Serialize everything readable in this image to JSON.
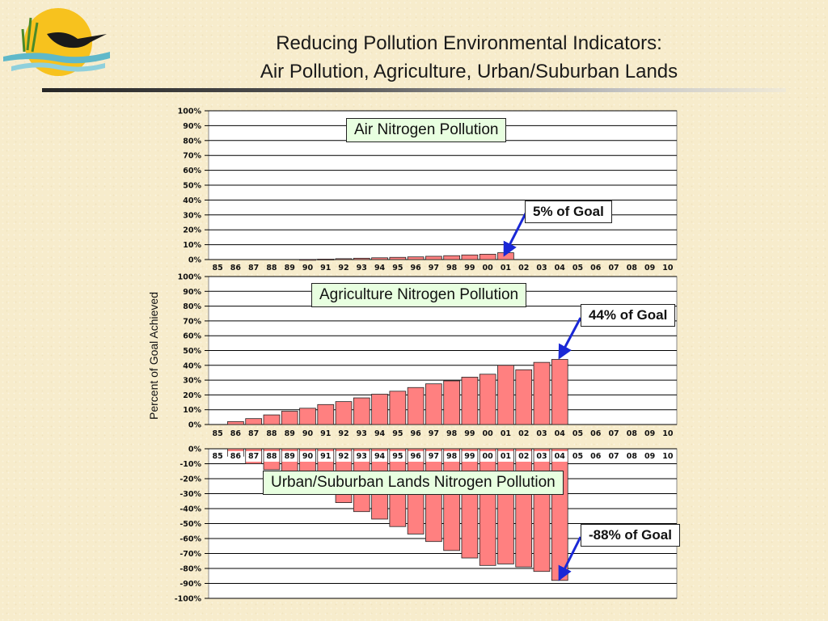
{
  "page": {
    "title_line1": "Reducing Pollution Environmental Indicators:",
    "title_line2": "Air Pollution, Agriculture, Urban/Suburban Lands",
    "y_axis_label": "Percent of Goal Achieved"
  },
  "chart_data": [
    {
      "type": "bar",
      "title": "Air Nitrogen Pollution",
      "annotation": "5% of Goal",
      "categories": [
        "85",
        "86",
        "87",
        "88",
        "89",
        "90",
        "91",
        "92",
        "93",
        "94",
        "95",
        "96",
        "97",
        "98",
        "99",
        "00",
        "01",
        "02",
        "03",
        "04",
        "05",
        "06",
        "07",
        "08",
        "09",
        "10"
      ],
      "values": [
        null,
        null,
        null,
        null,
        null,
        0.1,
        0.3,
        0.6,
        0.9,
        1.2,
        1.5,
        1.8,
        2.2,
        2.6,
        3.1,
        3.6,
        4.6,
        null,
        null,
        null,
        null,
        null,
        null,
        null,
        null,
        null
      ],
      "ylim": [
        0,
        100
      ],
      "yticks": [
        "0%",
        "10%",
        "20%",
        "30%",
        "40%",
        "50%",
        "60%",
        "70%",
        "80%",
        "90%",
        "100%"
      ],
      "bar_color": "#ff8080",
      "grid": true
    },
    {
      "type": "bar",
      "title": "Agriculture Nitrogen Pollution",
      "annotation": "44% of Goal",
      "categories": [
        "85",
        "86",
        "87",
        "88",
        "89",
        "90",
        "91",
        "92",
        "93",
        "94",
        "95",
        "96",
        "97",
        "98",
        "99",
        "00",
        "01",
        "02",
        "03",
        "04",
        "05",
        "06",
        "07",
        "08",
        "09",
        "10"
      ],
      "values": [
        null,
        2,
        4,
        6.5,
        9,
        11,
        13.5,
        15.5,
        18,
        20.5,
        22.5,
        25,
        27.5,
        29.5,
        32,
        34,
        40,
        37,
        42,
        44,
        null,
        null,
        null,
        null,
        null,
        null
      ],
      "ylim": [
        0,
        100
      ],
      "yticks": [
        "0%",
        "10%",
        "20%",
        "30%",
        "40%",
        "50%",
        "60%",
        "70%",
        "80%",
        "90%",
        "100%"
      ],
      "bar_color": "#ff8080",
      "grid": true
    },
    {
      "type": "bar",
      "title": "Urban/Suburban Lands Nitrogen Pollution",
      "annotation": "-88% of Goal",
      "categories": [
        "85",
        "86",
        "87",
        "88",
        "89",
        "90",
        "91",
        "92",
        "93",
        "94",
        "95",
        "96",
        "97",
        "98",
        "99",
        "00",
        "01",
        "02",
        "03",
        "04",
        "05",
        "06",
        "07",
        "08",
        "09",
        "10"
      ],
      "values": [
        null,
        -5,
        -10,
        -14,
        -18,
        -22,
        -28,
        -36,
        -42,
        -47,
        -52,
        -57,
        -62,
        -68,
        -73,
        -78,
        -77,
        -79,
        -82,
        -88,
        null,
        null,
        null,
        null,
        null,
        null
      ],
      "ylim": [
        -100,
        0
      ],
      "yticks": [
        "-100%",
        "-90%",
        "-80%",
        "-70%",
        "-60%",
        "-50%",
        "-40%",
        "-30%",
        "-20%",
        "-10%",
        "0%"
      ],
      "bar_color": "#ff8080",
      "grid": true
    }
  ]
}
